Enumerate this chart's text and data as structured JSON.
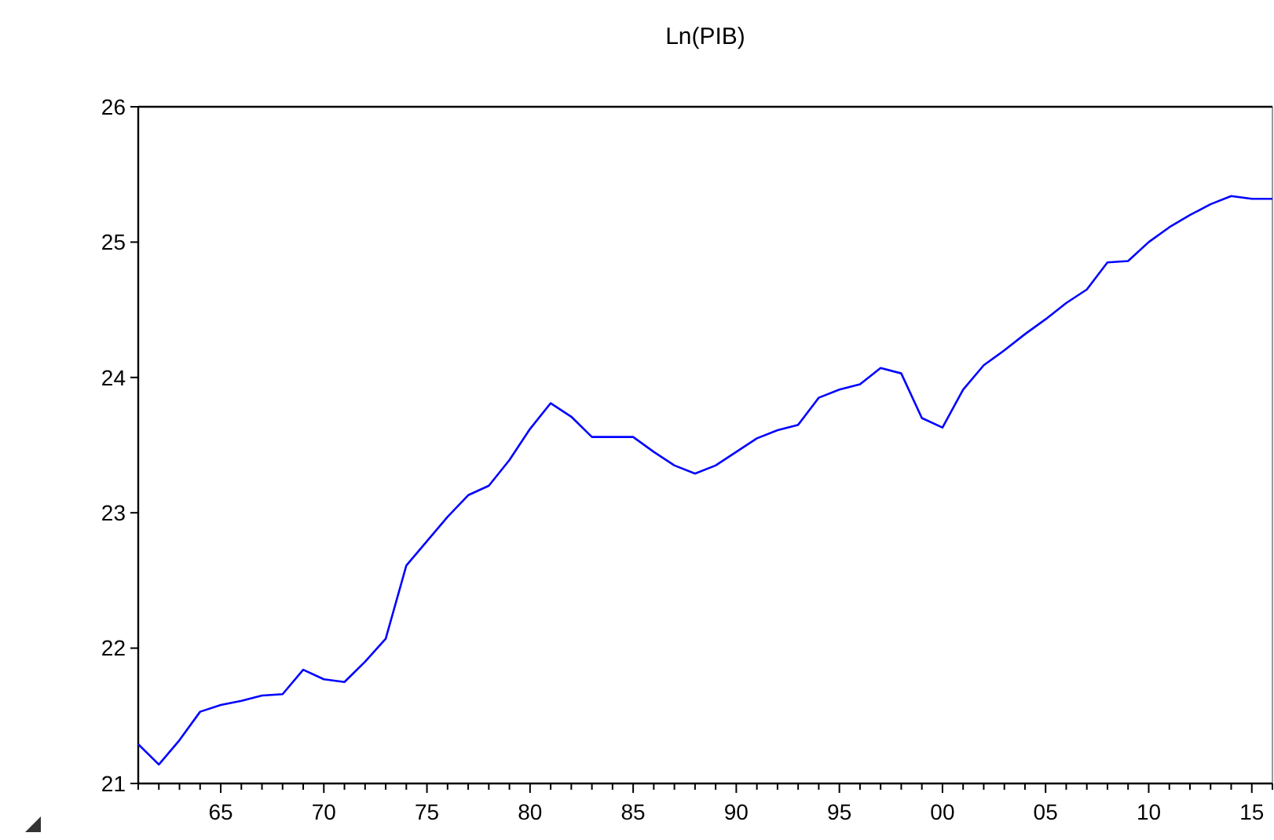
{
  "chart_data": {
    "type": "line",
    "title": "Ln(PIB)",
    "x": [
      1961,
      1962,
      1963,
      1964,
      1965,
      1966,
      1967,
      1968,
      1969,
      1970,
      1971,
      1972,
      1973,
      1974,
      1975,
      1976,
      1977,
      1978,
      1979,
      1980,
      1981,
      1982,
      1983,
      1984,
      1985,
      1986,
      1987,
      1988,
      1989,
      1990,
      1991,
      1992,
      1993,
      1994,
      1995,
      1996,
      1997,
      1998,
      1999,
      2000,
      2001,
      2002,
      2003,
      2004,
      2005,
      2006,
      2007,
      2008,
      2009,
      2010,
      2011,
      2012,
      2013,
      2014,
      2015,
      2016
    ],
    "series": [
      {
        "color": "#0000ff",
        "values": [
          21.29,
          21.14,
          21.32,
          21.53,
          21.58,
          21.61,
          21.65,
          21.66,
          21.84,
          21.77,
          21.75,
          21.9,
          22.07,
          22.61,
          22.79,
          22.97,
          23.13,
          23.2,
          23.39,
          23.62,
          23.81,
          23.71,
          23.56,
          23.56,
          23.56,
          23.45,
          23.35,
          23.29,
          23.35,
          23.45,
          23.55,
          23.61,
          23.65,
          23.85,
          23.91,
          23.95,
          24.07,
          24.03,
          23.7,
          23.63,
          23.91,
          24.09,
          24.2,
          24.32,
          24.43,
          24.55,
          24.65,
          24.85,
          24.86,
          25.0,
          25.11,
          25.2,
          25.28,
          25.34,
          25.32,
          25.32
        ]
      }
    ],
    "xlim": [
      1961,
      2016
    ],
    "xticks": [
      {
        "value": 1961,
        "label": null
      },
      {
        "value": 1962,
        "label": null
      },
      {
        "value": 1963,
        "label": null
      },
      {
        "value": 1964,
        "label": null
      },
      {
        "value": 1965,
        "label": "65"
      },
      {
        "value": 1966,
        "label": null
      },
      {
        "value": 1967,
        "label": null
      },
      {
        "value": 1968,
        "label": null
      },
      {
        "value": 1969,
        "label": null
      },
      {
        "value": 1970,
        "label": "70"
      },
      {
        "value": 1971,
        "label": null
      },
      {
        "value": 1972,
        "label": null
      },
      {
        "value": 1973,
        "label": null
      },
      {
        "value": 1974,
        "label": null
      },
      {
        "value": 1975,
        "label": "75"
      },
      {
        "value": 1976,
        "label": null
      },
      {
        "value": 1977,
        "label": null
      },
      {
        "value": 1978,
        "label": null
      },
      {
        "value": 1979,
        "label": null
      },
      {
        "value": 1980,
        "label": "80"
      },
      {
        "value": 1981,
        "label": null
      },
      {
        "value": 1982,
        "label": null
      },
      {
        "value": 1983,
        "label": null
      },
      {
        "value": 1984,
        "label": null
      },
      {
        "value": 1985,
        "label": "85"
      },
      {
        "value": 1986,
        "label": null
      },
      {
        "value": 1987,
        "label": null
      },
      {
        "value": 1988,
        "label": null
      },
      {
        "value": 1989,
        "label": null
      },
      {
        "value": 1990,
        "label": "90"
      },
      {
        "value": 1991,
        "label": null
      },
      {
        "value": 1992,
        "label": null
      },
      {
        "value": 1993,
        "label": null
      },
      {
        "value": 1994,
        "label": null
      },
      {
        "value": 1995,
        "label": "95"
      },
      {
        "value": 1996,
        "label": null
      },
      {
        "value": 1997,
        "label": null
      },
      {
        "value": 1998,
        "label": null
      },
      {
        "value": 1999,
        "label": null
      },
      {
        "value": 2000,
        "label": "00"
      },
      {
        "value": 2001,
        "label": null
      },
      {
        "value": 2002,
        "label": null
      },
      {
        "value": 2003,
        "label": null
      },
      {
        "value": 2004,
        "label": null
      },
      {
        "value": 2005,
        "label": "05"
      },
      {
        "value": 2006,
        "label": null
      },
      {
        "value": 2007,
        "label": null
      },
      {
        "value": 2008,
        "label": null
      },
      {
        "value": 2009,
        "label": null
      },
      {
        "value": 2010,
        "label": "10"
      },
      {
        "value": 2011,
        "label": null
      },
      {
        "value": 2012,
        "label": null
      },
      {
        "value": 2013,
        "label": null
      },
      {
        "value": 2014,
        "label": null
      },
      {
        "value": 2015,
        "label": "15"
      },
      {
        "value": 2016,
        "label": null
      }
    ],
    "ylim": [
      21,
      26
    ],
    "yticks": [
      21,
      22,
      23,
      24,
      25,
      26
    ],
    "marker": "none",
    "line_style": "solid"
  }
}
